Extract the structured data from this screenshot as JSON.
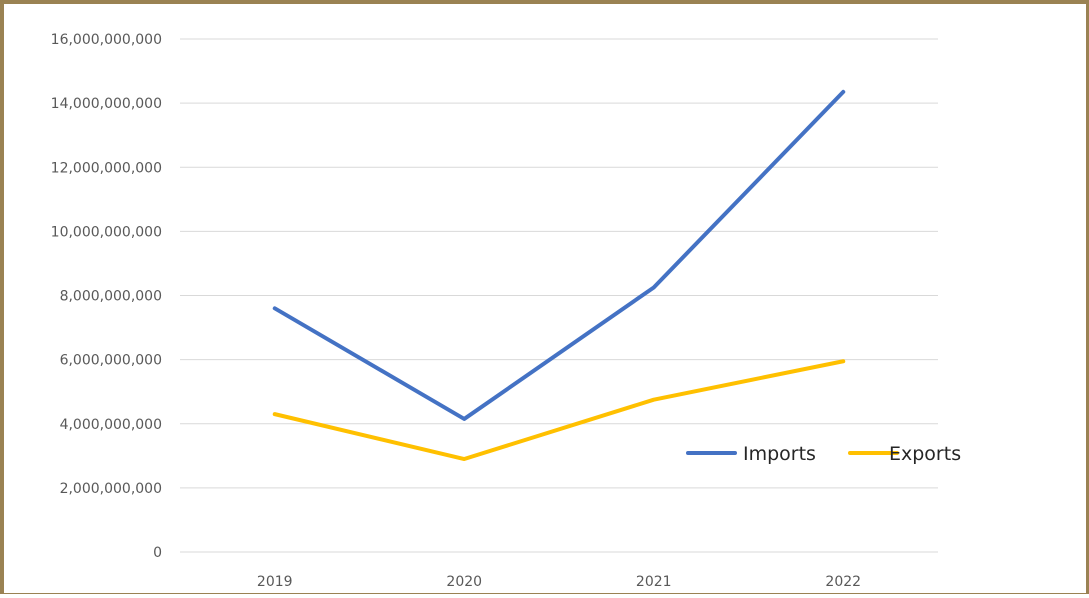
{
  "chart_data": {
    "type": "line",
    "title": "",
    "xlabel": "",
    "ylabel": "",
    "categories": [
      "2019",
      "2020",
      "2021",
      "2022"
    ],
    "ylim": [
      0,
      16000000000
    ],
    "yticks": [
      0,
      2000000000,
      4000000000,
      6000000000,
      8000000000,
      10000000000,
      12000000000,
      14000000000,
      16000000000
    ],
    "ytick_labels": [
      "0",
      "2,000,000,000",
      "4,000,000,000",
      "6,000,000,000",
      "8,000,000,000",
      "10,000,000,000",
      "12,000,000,000",
      "14,000,000,000",
      "16,000,000,000"
    ],
    "grid": true,
    "legend_position": "right, inside plot",
    "series": [
      {
        "name": "Imports",
        "color": "#4472c4",
        "values": [
          7600000000,
          4150000000,
          8250000000,
          14350000000
        ]
      },
      {
        "name": "Exports",
        "color": "#ffc000",
        "values": [
          4300000000,
          2900000000,
          4750000000,
          5950000000
        ]
      }
    ]
  }
}
